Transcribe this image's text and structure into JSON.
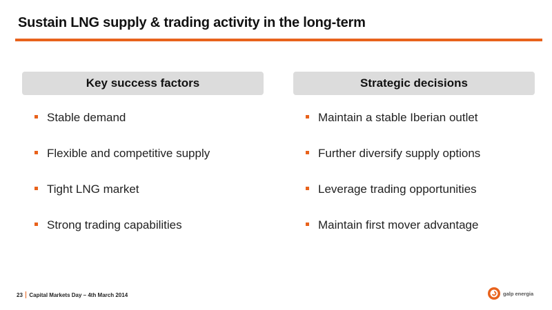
{
  "slide": {
    "title": "Sustain LNG supply & trading activity in the long-term"
  },
  "left_column": {
    "header": "Key success factors",
    "items": [
      "Stable demand",
      "Flexible and competitive supply",
      "Tight LNG market",
      "Strong trading capabilities"
    ]
  },
  "right_column": {
    "header": "Strategic decisions",
    "items": [
      "Maintain a stable Iberian outlet",
      "Further diversify supply options",
      "Leverage trading opportunities",
      "Maintain first mover advantage"
    ]
  },
  "footer": {
    "page_number": "23",
    "event": "Capital Markets Day – 4th March 2014"
  },
  "logo": {
    "text": "galp energia",
    "icon": "galp-logo-icon"
  },
  "colors": {
    "accent": "#e8621c",
    "header_fill": "#dcdcdc"
  }
}
